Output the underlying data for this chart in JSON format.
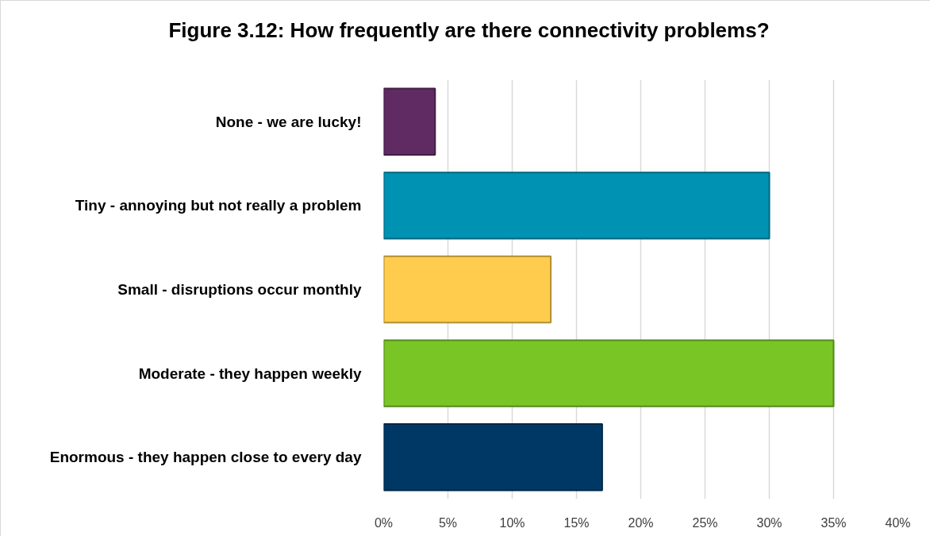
{
  "chart_data": {
    "type": "bar",
    "orientation": "horizontal",
    "title": "Figure 3.12: How frequently are there connectivity problems?",
    "categories": [
      "None - we are lucky!",
      "Tiny - annoying but not really a problem",
      "Small - disruptions occur monthly",
      "Moderate - they happen weekly",
      "Enormous - they happen close to every day"
    ],
    "values": [
      4,
      30,
      13,
      35,
      17
    ],
    "colors": [
      "#5f2b62",
      "#0092b3",
      "#ffcc4d",
      "#7ac526",
      "#003865"
    ],
    "xlim": [
      0,
      40
    ],
    "xticks": [
      {
        "value": 0,
        "label": "0%"
      },
      {
        "value": 5,
        "label": "5%"
      },
      {
        "value": 10,
        "label": "10%"
      },
      {
        "value": 15,
        "label": "15%"
      },
      {
        "value": 20,
        "label": "20%"
      },
      {
        "value": 25,
        "label": "25%"
      },
      {
        "value": 30,
        "label": "30%"
      },
      {
        "value": 35,
        "label": "35%"
      },
      {
        "value": 40,
        "label": "40%"
      }
    ],
    "grid": "x"
  }
}
